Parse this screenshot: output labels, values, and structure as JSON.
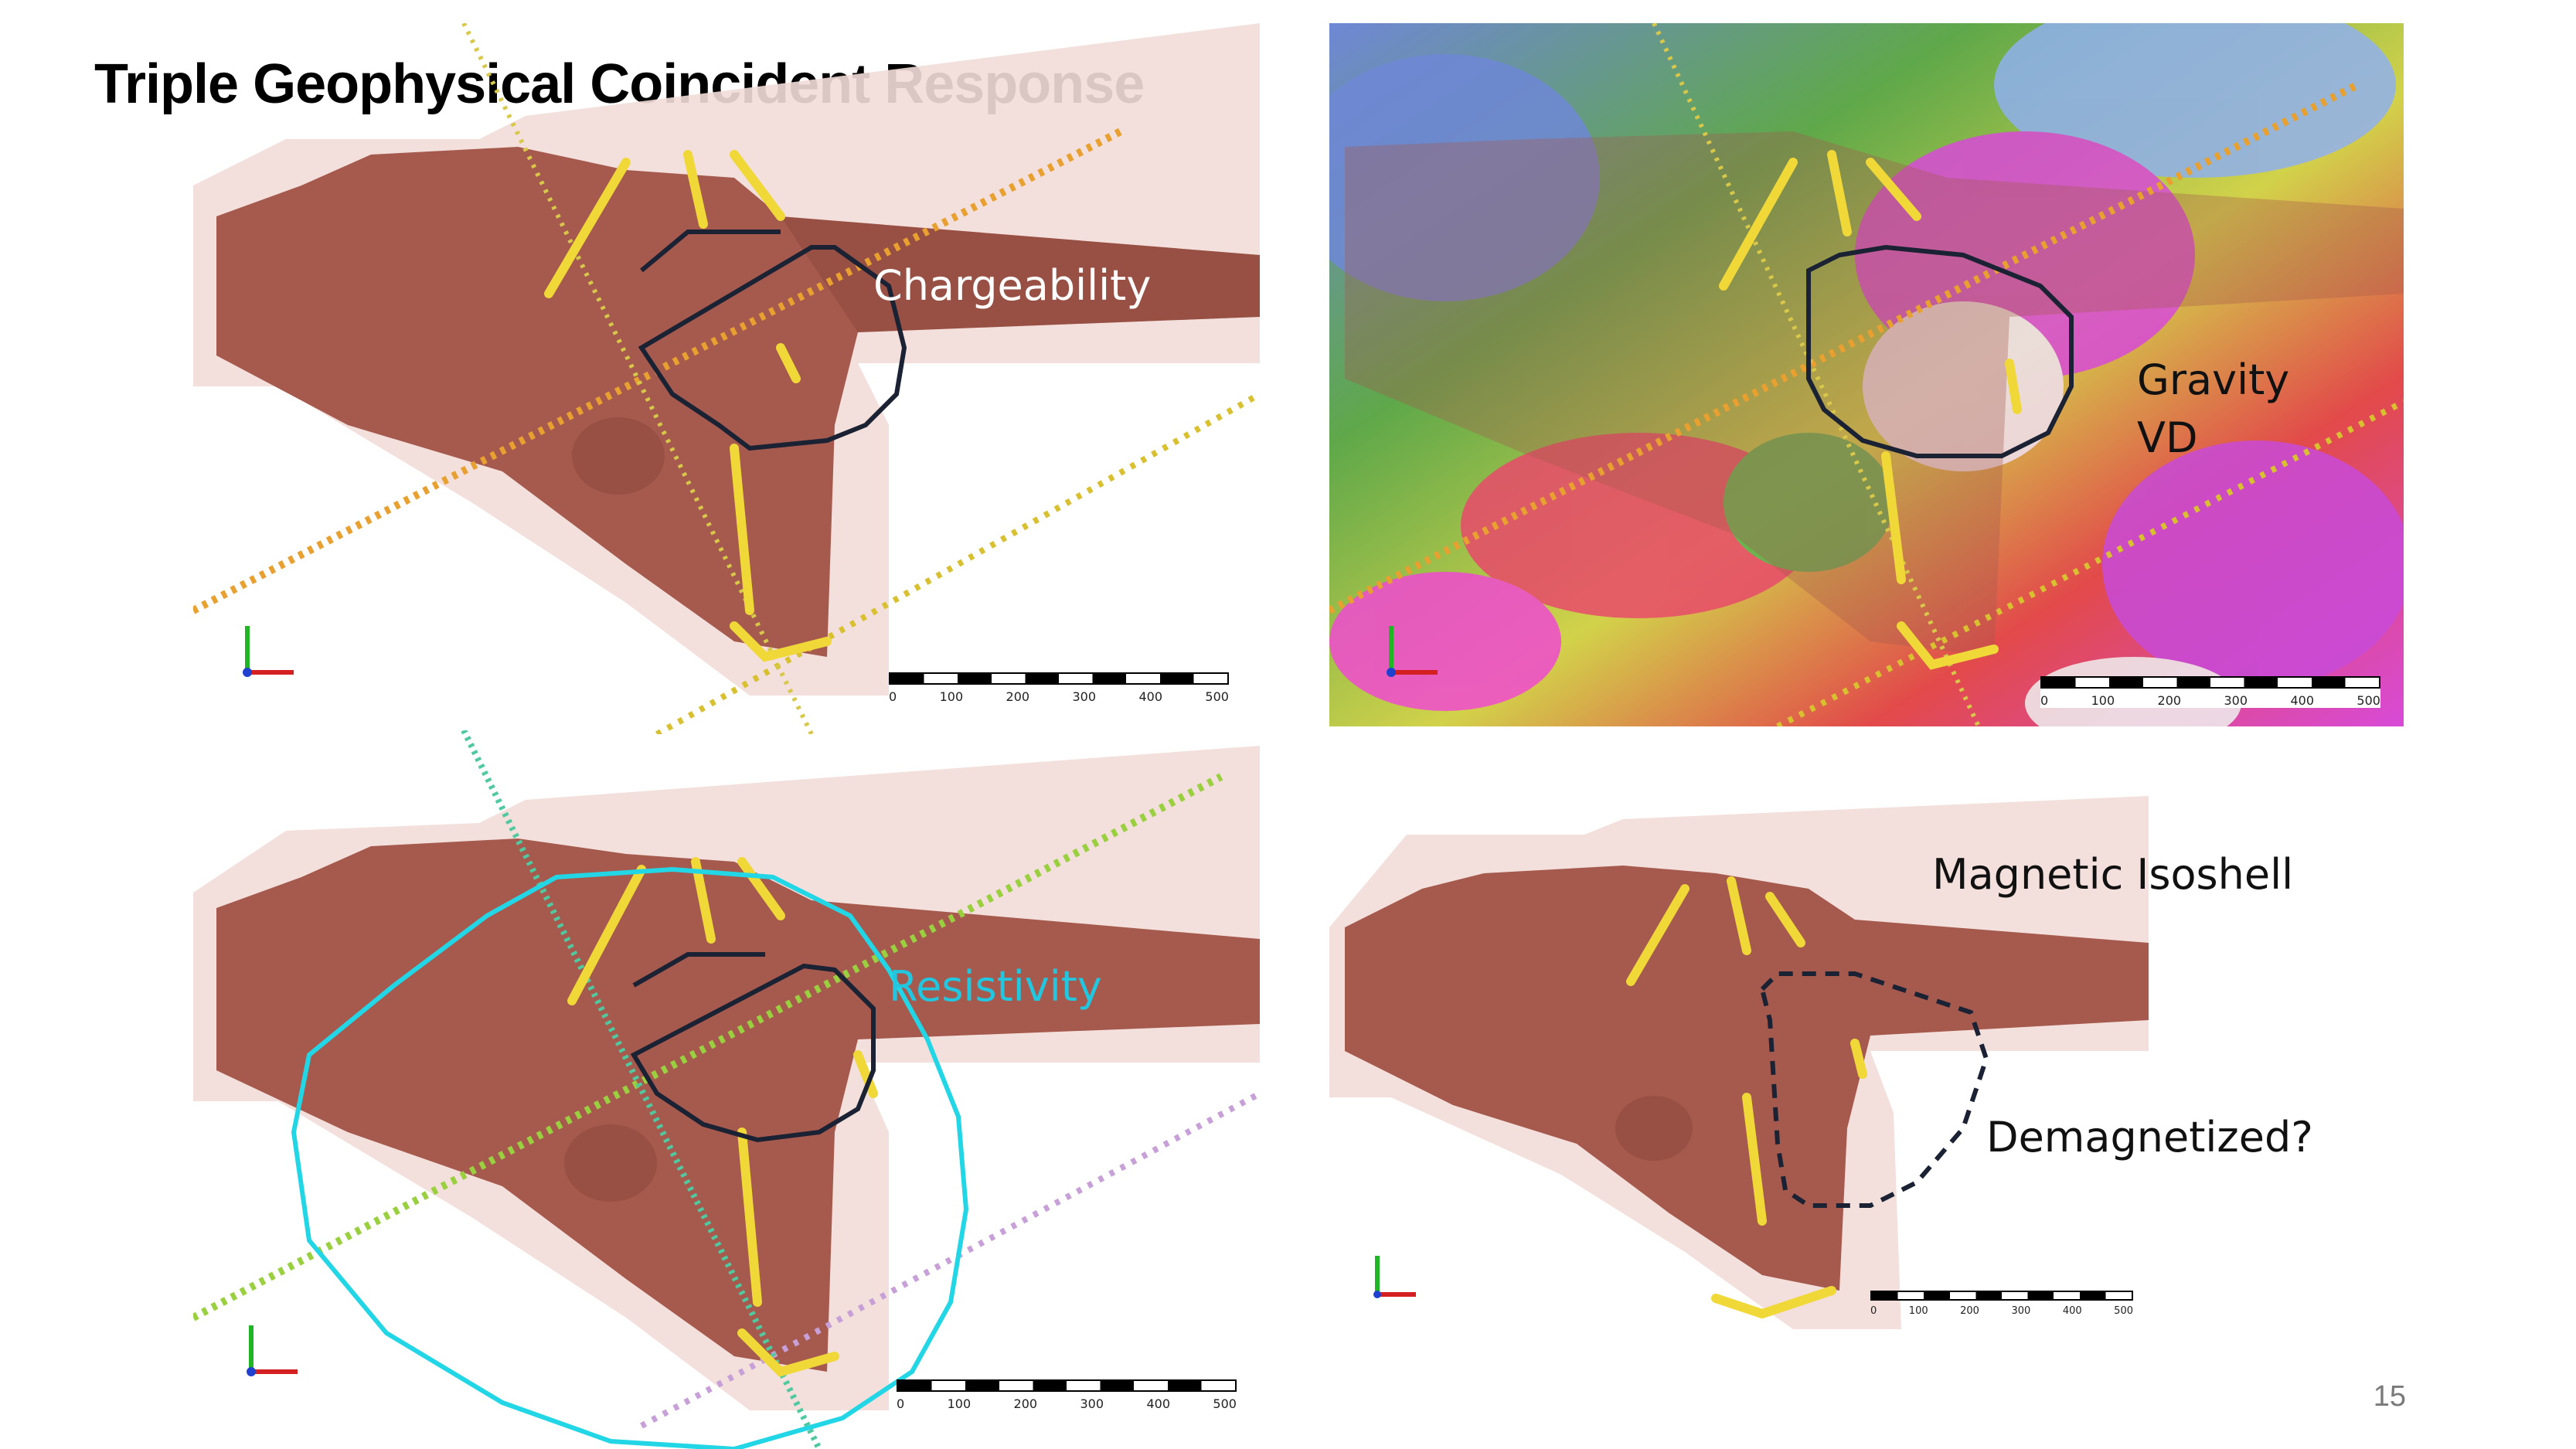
{
  "slide": {
    "title": "Triple Geophysical Coincident Response",
    "page_number": "15"
  },
  "panels": {
    "chargeability": {
      "label": "Chargeability"
    },
    "gravity": {
      "label_line1": "Gravity",
      "label_line2": "VD"
    },
    "resistivity": {
      "label": "Resistivity"
    },
    "magnetic": {
      "label_top": "Magnetic Isoshell",
      "label_mid": "Demagnetized?"
    }
  },
  "scalebar": {
    "ticks": [
      "0",
      "100",
      "200",
      "300",
      "400",
      "500"
    ]
  },
  "colors": {
    "isoshell": "#a65a4e",
    "halo": "#e8c8c2",
    "outline": "#1a2233",
    "cyan_outline": "#22d6e6",
    "resistivity_label": "#22c6de",
    "veins": "#f0d838"
  }
}
